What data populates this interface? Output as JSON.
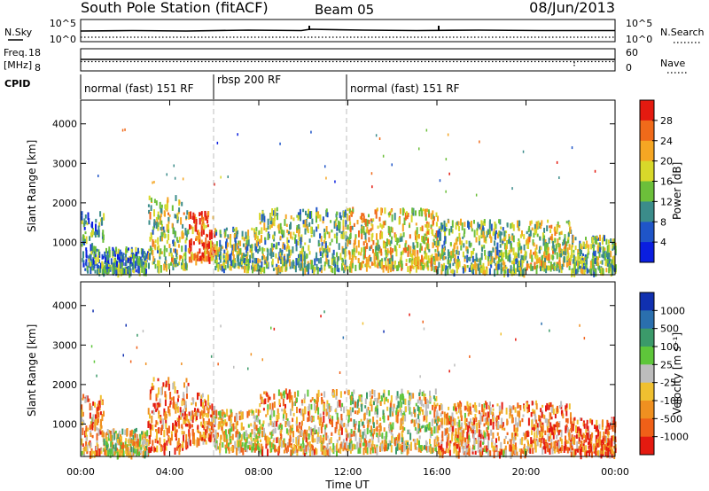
{
  "header": {
    "station": "South Pole Station (fitACF)",
    "beam": "Beam 05",
    "date": "08/Jun/2013"
  },
  "strips": {
    "nsky_label": "N.Sky",
    "nsky_ticks": [
      "10^5",
      "10^0"
    ],
    "nsearch_label": "N.Search",
    "nsearch_ticks": [
      "10^5",
      "10^0"
    ],
    "freq_label": "Freq.",
    "freq_unit": "[MHz]",
    "freq_ticks": [
      "18",
      "8"
    ],
    "nave_label": "Nave",
    "nave_ticks": [
      "60",
      "0"
    ],
    "cpid_label": "CPID",
    "cpid_segments": [
      {
        "label": "normal (fast) 151 RF",
        "start_h": 0,
        "end_h": 6
      },
      {
        "label": "rbsp 200 RF",
        "start_h": 6,
        "end_h": 12
      },
      {
        "label": "normal (fast) 151 RF",
        "start_h": 12,
        "end_h": 24
      }
    ]
  },
  "axes": {
    "ylabel": "Slant Range [km]",
    "yticks": [
      "1000",
      "2000",
      "3000",
      "4000"
    ],
    "xlabel": "Time UT",
    "xticks": [
      "00:00",
      "04:00",
      "08:00",
      "12:00",
      "16:00",
      "20:00",
      "00:00"
    ]
  },
  "chart_data": [
    {
      "type": "heatmap",
      "name": "power",
      "x_range_hours": [
        0,
        24
      ],
      "y_range_km": [
        180,
        4600
      ],
      "colorbar_label": "Power [dB]",
      "colorbar_ticks": [
        "4",
        "8",
        "12",
        "16",
        "20",
        "24",
        "28"
      ],
      "colorbar_colors": [
        "#0a1ee0",
        "#1f55c8",
        "#3b8c8a",
        "#6cbf3a",
        "#d8d82a",
        "#f5a623",
        "#f06a1a",
        "#e41a10"
      ],
      "scatter_regions": [
        {
          "t0": 0.0,
          "t1": 1.0,
          "r0": 300,
          "r1": 1800,
          "level": 0.35
        },
        {
          "t0": 1.0,
          "t1": 3.0,
          "r0": 300,
          "r1": 900,
          "level": 0.3
        },
        {
          "t0": 3.0,
          "t1": 4.8,
          "r0": 400,
          "r1": 2200,
          "level": 0.5
        },
        {
          "t0": 4.8,
          "t1": 6.0,
          "r0": 600,
          "r1": 1800,
          "level": 0.85
        },
        {
          "t0": 6.0,
          "t1": 8.0,
          "r0": 400,
          "r1": 1400,
          "level": 0.45
        },
        {
          "t0": 8.0,
          "t1": 12.0,
          "r0": 350,
          "r1": 1900,
          "level": 0.45
        },
        {
          "t0": 12.0,
          "t1": 16.0,
          "r0": 400,
          "r1": 1900,
          "level": 0.6
        },
        {
          "t0": 16.0,
          "t1": 20.0,
          "r0": 300,
          "r1": 1600,
          "level": 0.45
        },
        {
          "t0": 20.0,
          "t1": 22.0,
          "r0": 400,
          "r1": 1600,
          "level": 0.55
        },
        {
          "t0": 22.0,
          "t1": 24.0,
          "r0": 300,
          "r1": 1200,
          "level": 0.45
        }
      ],
      "vertical_markers_h": [
        6,
        12
      ]
    },
    {
      "type": "heatmap",
      "name": "velocity",
      "x_range_hours": [
        0,
        24
      ],
      "y_range_km": [
        180,
        4600
      ],
      "colorbar_label": "Velocity [m s⁻¹]",
      "colorbar_ticks": [
        "1000",
        "500",
        "100",
        "25",
        "-25",
        "-100",
        "-500",
        "-1000"
      ],
      "colorbar_colors": [
        "#1030b0",
        "#2a6fae",
        "#3b9a6a",
        "#5ec63a",
        "#bdbdbd",
        "#f0c030",
        "#f09020",
        "#f06018",
        "#e41a10"
      ],
      "scatter_regions": [
        {
          "t0": 0.0,
          "t1": 1.0,
          "r0": 300,
          "r1": 1800,
          "level": 0.7
        },
        {
          "t0": 1.0,
          "t1": 3.0,
          "r0": 300,
          "r1": 900,
          "level": 0.55
        },
        {
          "t0": 3.0,
          "t1": 4.8,
          "r0": 400,
          "r1": 2200,
          "level": 0.8
        },
        {
          "t0": 4.8,
          "t1": 6.0,
          "r0": 600,
          "r1": 1800,
          "level": 0.75
        },
        {
          "t0": 6.0,
          "t1": 8.0,
          "r0": 400,
          "r1": 1400,
          "level": 0.6
        },
        {
          "t0": 8.0,
          "t1": 12.0,
          "r0": 350,
          "r1": 1900,
          "level": 0.65
        },
        {
          "t0": 12.0,
          "t1": 16.0,
          "r0": 400,
          "r1": 1900,
          "level": 0.55
        },
        {
          "t0": 16.0,
          "t1": 20.0,
          "r0": 300,
          "r1": 1600,
          "level": 0.7
        },
        {
          "t0": 20.0,
          "t1": 22.0,
          "r0": 400,
          "r1": 1600,
          "level": 0.75
        },
        {
          "t0": 22.0,
          "t1": 24.0,
          "r0": 300,
          "r1": 1200,
          "level": 0.8
        }
      ],
      "vertical_markers_h": [
        6,
        12
      ]
    }
  ]
}
